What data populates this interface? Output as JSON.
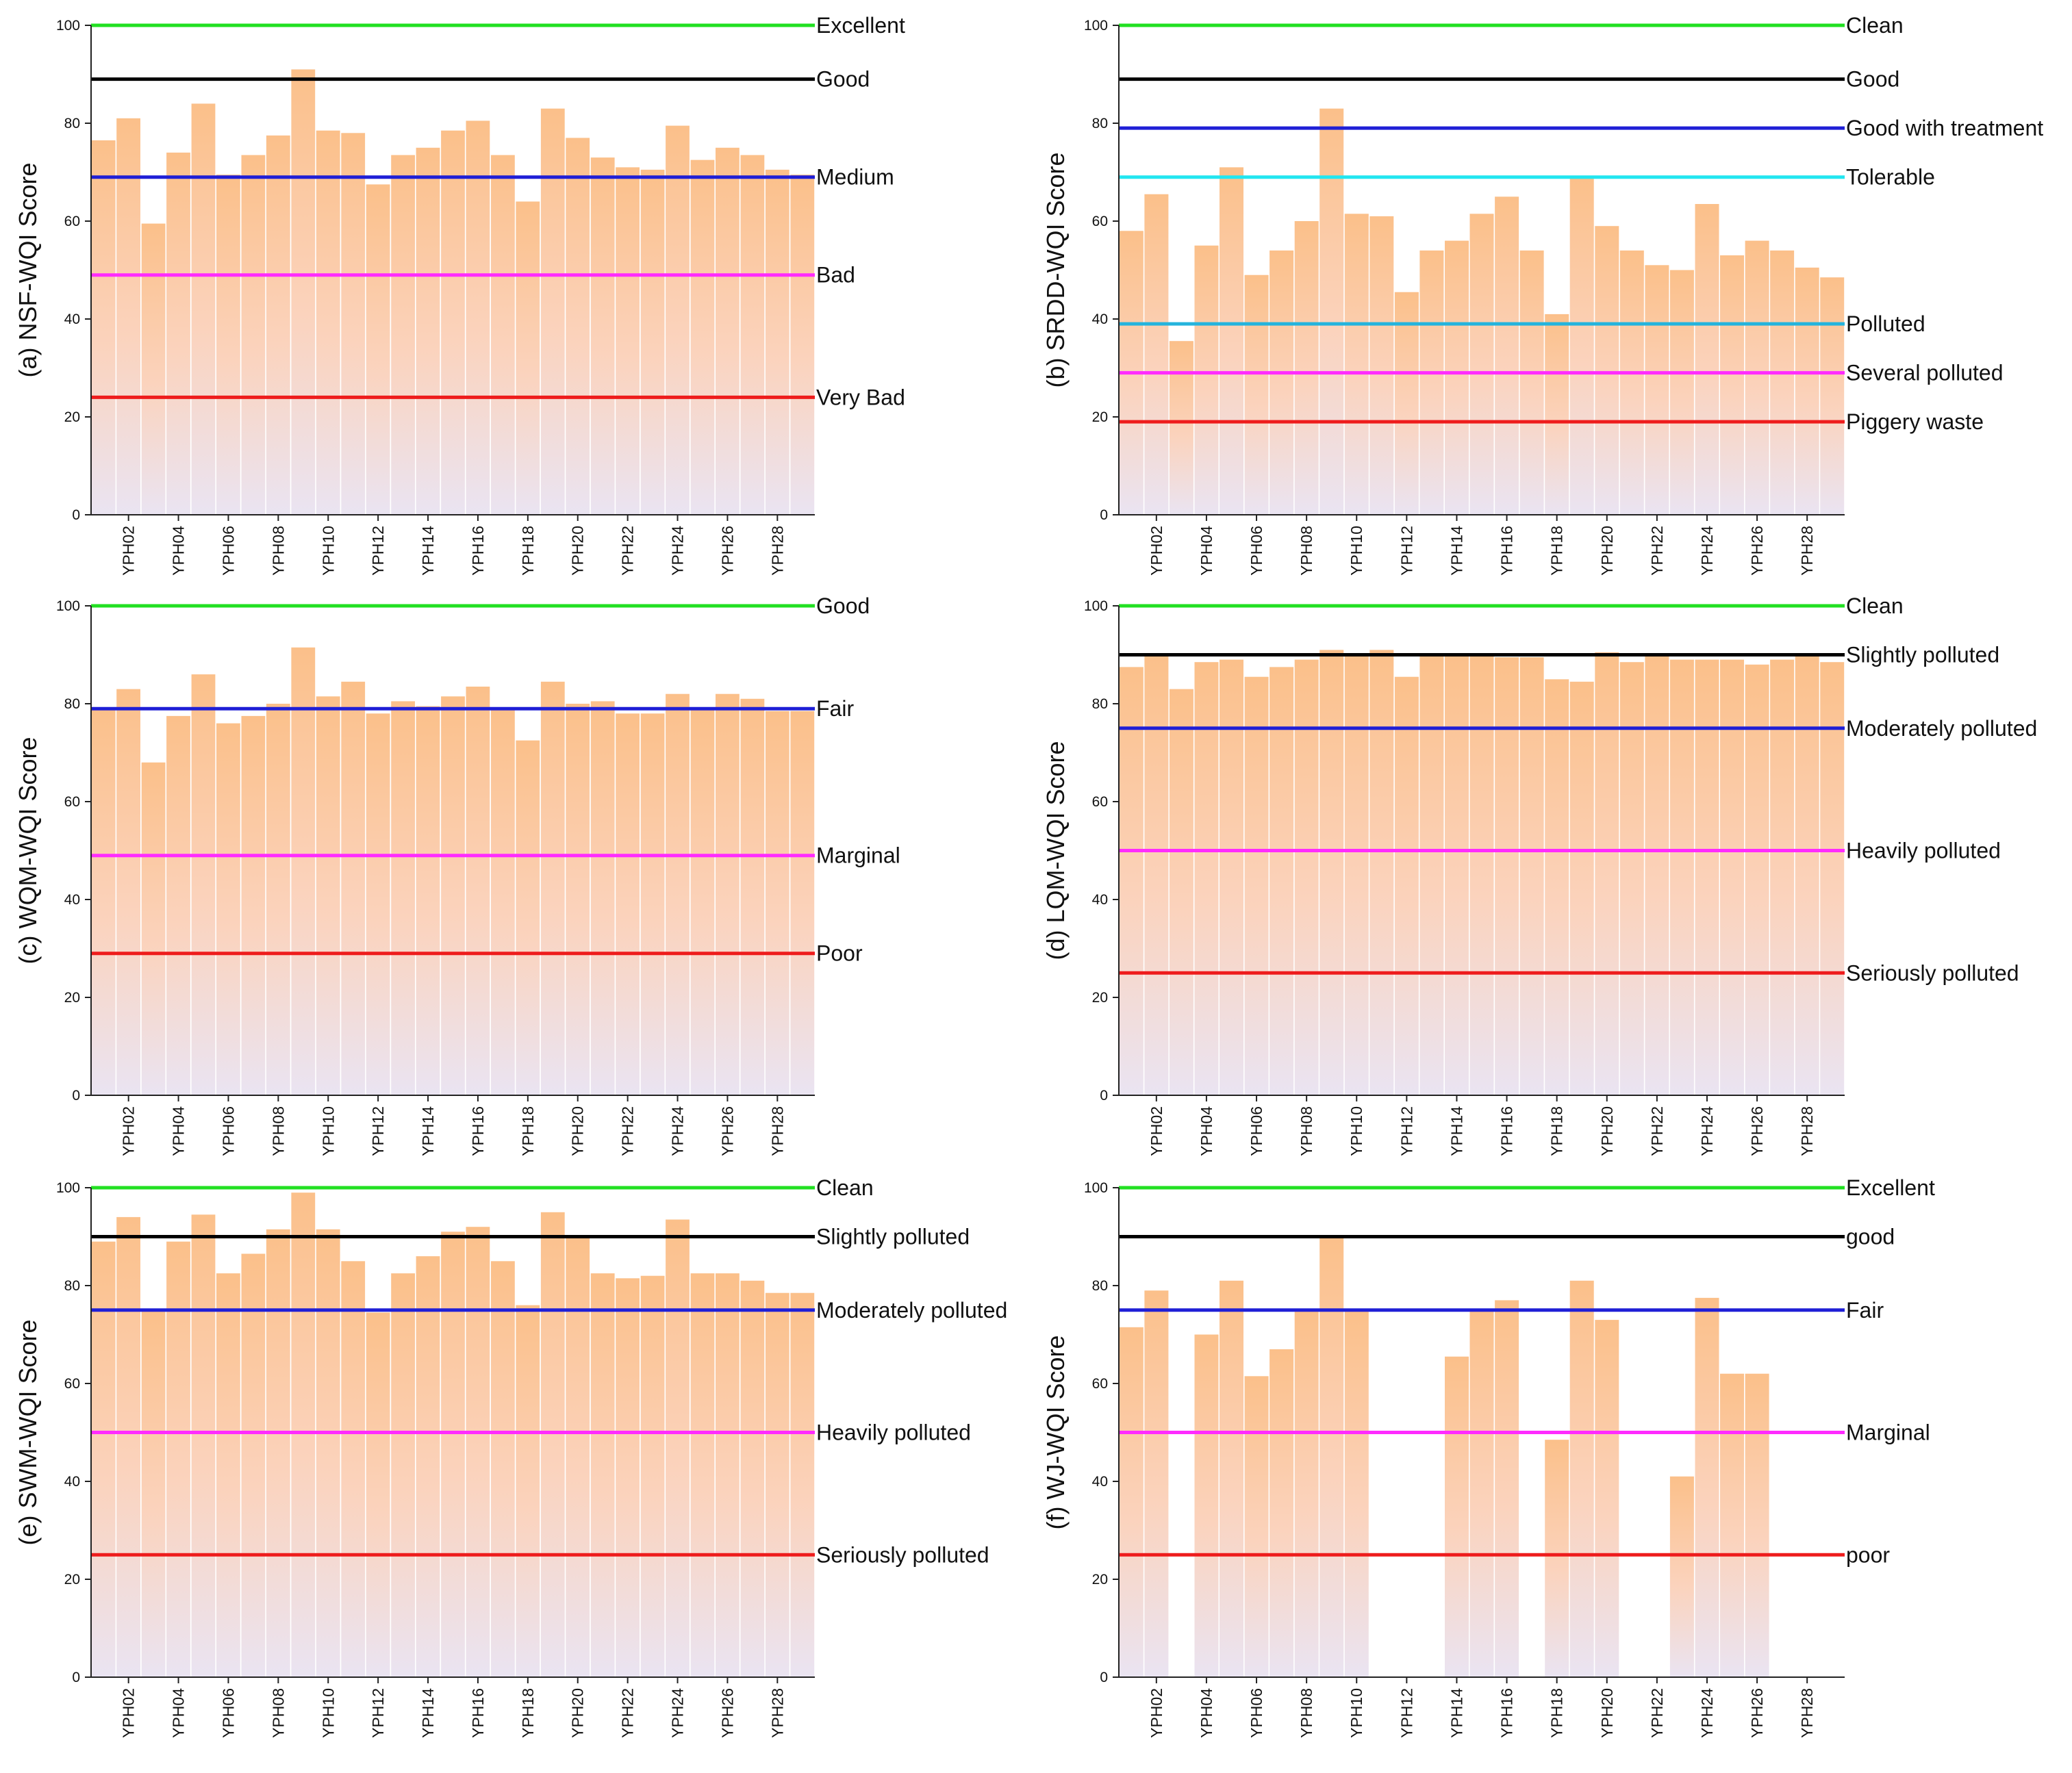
{
  "chart_data": [
    {
      "id": "a",
      "type": "bar",
      "ylabel": "(a) NSF-WQI Score",
      "ylim": [
        0,
        100
      ],
      "yticks": [
        "0",
        "20",
        "40",
        "60",
        "80",
        "100"
      ],
      "categories": [
        "YPH01",
        "YPH02",
        "YPH03",
        "YPH04",
        "YPH05",
        "YPH06",
        "YPH07",
        "YPH08",
        "YPH09",
        "YPH10",
        "YPH11",
        "YPH12",
        "YPH13",
        "YPH14",
        "YPH15",
        "YPH16",
        "YPH17",
        "YPH18",
        "YPH19",
        "YPH20",
        "YPH21",
        "YPH22",
        "YPH23",
        "YPH24",
        "YPH25",
        "YPH26",
        "YPH27",
        "YPH28",
        "YPH29"
      ],
      "xtick_labels": [
        "YPH02",
        "YPH04",
        "YPH06",
        "YPH08",
        "YPH10",
        "YPH12",
        "YPH14",
        "YPH16",
        "YPH18",
        "YPH20",
        "YPH22",
        "YPH24",
        "YPH26",
        "YPH28"
      ],
      "values": [
        76.5,
        81,
        59.5,
        74,
        84,
        69.5,
        73.5,
        77.5,
        91,
        78.5,
        78,
        67.5,
        73.5,
        75,
        78.5,
        80.5,
        73.5,
        64,
        83,
        77,
        73,
        71,
        70.5,
        79.5,
        72.5,
        75,
        73.5,
        70.5,
        69.5
      ],
      "thresholds": [
        {
          "value": 100,
          "label": "Excellent",
          "color": "#22e022"
        },
        {
          "value": 89,
          "label": "Good",
          "color": "#000000"
        },
        {
          "value": 69,
          "label": "Medium",
          "color": "#1f1fd6"
        },
        {
          "value": 49,
          "label": "Bad",
          "color": "#ff2bff"
        },
        {
          "value": 24,
          "label": "Very Bad",
          "color": "#ee1c1c"
        }
      ]
    },
    {
      "id": "b",
      "type": "bar",
      "ylabel": "(b) SRDD-WQI Score",
      "ylim": [
        0,
        100
      ],
      "yticks": [
        "0",
        "20",
        "40",
        "60",
        "80",
        "100"
      ],
      "categories": [
        "YPH01",
        "YPH02",
        "YPH03",
        "YPH04",
        "YPH05",
        "YPH06",
        "YPH07",
        "YPH08",
        "YPH09",
        "YPH10",
        "YPH11",
        "YPH12",
        "YPH13",
        "YPH14",
        "YPH15",
        "YPH16",
        "YPH17",
        "YPH18",
        "YPH19",
        "YPH20",
        "YPH21",
        "YPH22",
        "YPH23",
        "YPH24",
        "YPH25",
        "YPH26",
        "YPH27",
        "YPH28",
        "YPH29"
      ],
      "xtick_labels": [
        "YPH02",
        "YPH04",
        "YPH06",
        "YPH08",
        "YPH10",
        "YPH12",
        "YPH14",
        "YPH16",
        "YPH18",
        "YPH20",
        "YPH22",
        "YPH24",
        "YPH26",
        "YPH28"
      ],
      "values": [
        58,
        65.5,
        35.5,
        55,
        71,
        49,
        54,
        60,
        83,
        61.5,
        61,
        45.5,
        54,
        56,
        61.5,
        65,
        54,
        41,
        69,
        59,
        54,
        51,
        50,
        63.5,
        53,
        56,
        54,
        50.5,
        48.5
      ],
      "thresholds": [
        {
          "value": 100,
          "label": "Clean",
          "color": "#22e022"
        },
        {
          "value": 89,
          "label": "Good",
          "color": "#000000"
        },
        {
          "value": 79,
          "label": "Good with treatment",
          "color": "#1f1fd6"
        },
        {
          "value": 69,
          "label": "Tolerable",
          "color": "#22e6f0"
        },
        {
          "value": 39,
          "label": "Polluted",
          "color": "#25b4dd"
        },
        {
          "value": 29,
          "label": "Several polluted",
          "color": "#ff2bff"
        },
        {
          "value": 19,
          "label": "Piggery waste",
          "color": "#ee1c1c"
        }
      ]
    },
    {
      "id": "c",
      "type": "bar",
      "ylabel": "(c) WQM-WQI Score",
      "ylim": [
        0,
        100
      ],
      "yticks": [
        "0",
        "20",
        "40",
        "60",
        "80",
        "100"
      ],
      "categories": [
        "YPH01",
        "YPH02",
        "YPH03",
        "YPH04",
        "YPH05",
        "YPH06",
        "YPH07",
        "YPH08",
        "YPH09",
        "YPH10",
        "YPH11",
        "YPH12",
        "YPH13",
        "YPH14",
        "YPH15",
        "YPH16",
        "YPH17",
        "YPH18",
        "YPH19",
        "YPH20",
        "YPH21",
        "YPH22",
        "YPH23",
        "YPH24",
        "YPH25",
        "YPH26",
        "YPH27",
        "YPH28",
        "YPH29"
      ],
      "xtick_labels": [
        "YPH02",
        "YPH04",
        "YPH06",
        "YPH08",
        "YPH10",
        "YPH12",
        "YPH14",
        "YPH16",
        "YPH18",
        "YPH20",
        "YPH22",
        "YPH24",
        "YPH26",
        "YPH28"
      ],
      "values": [
        79,
        83,
        68,
        77.5,
        86,
        76,
        77.5,
        80,
        91.5,
        81.5,
        84.5,
        78,
        80.5,
        79.5,
        81.5,
        83.5,
        79,
        72.5,
        84.5,
        80,
        80.5,
        78,
        78,
        82,
        79,
        82,
        81,
        78.5,
        78.5
      ],
      "thresholds": [
        {
          "value": 100,
          "label": "Good",
          "color": "#22e022"
        },
        {
          "value": 79,
          "label": "Fair",
          "color": "#1f1fd6"
        },
        {
          "value": 49,
          "label": "Marginal",
          "color": "#ff2bff"
        },
        {
          "value": 29,
          "label": "Poor",
          "color": "#ee1c1c"
        }
      ]
    },
    {
      "id": "d",
      "type": "bar",
      "ylabel": "(d) LQM-WQI Score",
      "ylim": [
        0,
        100
      ],
      "yticks": [
        "0",
        "20",
        "40",
        "60",
        "80",
        "100"
      ],
      "categories": [
        "YPH01",
        "YPH02",
        "YPH03",
        "YPH04",
        "YPH05",
        "YPH06",
        "YPH07",
        "YPH08",
        "YPH09",
        "YPH10",
        "YPH11",
        "YPH12",
        "YPH13",
        "YPH14",
        "YPH15",
        "YPH16",
        "YPH17",
        "YPH18",
        "YPH19",
        "YPH20",
        "YPH21",
        "YPH22",
        "YPH23",
        "YPH24",
        "YPH25",
        "YPH26",
        "YPH27",
        "YPH28",
        "YPH29"
      ],
      "xtick_labels": [
        "YPH02",
        "YPH04",
        "YPH06",
        "YPH08",
        "YPH10",
        "YPH12",
        "YPH14",
        "YPH16",
        "YPH18",
        "YPH20",
        "YPH22",
        "YPH24",
        "YPH26",
        "YPH28"
      ],
      "values": [
        87.5,
        90,
        83,
        88.5,
        89,
        85.5,
        87.5,
        89,
        91,
        90,
        91,
        85.5,
        90,
        90,
        90,
        89.5,
        89.5,
        85,
        84.5,
        90.5,
        88.5,
        90,
        89,
        89,
        89,
        88,
        89,
        90,
        88.5
      ],
      "thresholds": [
        {
          "value": 100,
          "label": "Clean",
          "color": "#22e022"
        },
        {
          "value": 90,
          "label": "Slightly polluted",
          "color": "#000000"
        },
        {
          "value": 75,
          "label": "Moderately polluted",
          "color": "#1f1fd6"
        },
        {
          "value": 50,
          "label": "Heavily polluted",
          "color": "#ff2bff"
        },
        {
          "value": 25,
          "label": "Seriously polluted",
          "color": "#ee1c1c"
        }
      ]
    },
    {
      "id": "e",
      "type": "bar",
      "ylabel": "(e) SWM-WQI Score",
      "ylim": [
        0,
        100
      ],
      "yticks": [
        "0",
        "20",
        "40",
        "60",
        "80",
        "100"
      ],
      "categories": [
        "YPH01",
        "YPH02",
        "YPH03",
        "YPH04",
        "YPH05",
        "YPH06",
        "YPH07",
        "YPH08",
        "YPH09",
        "YPH10",
        "YPH11",
        "YPH12",
        "YPH13",
        "YPH14",
        "YPH15",
        "YPH16",
        "YPH17",
        "YPH18",
        "YPH19",
        "YPH20",
        "YPH21",
        "YPH22",
        "YPH23",
        "YPH24",
        "YPH25",
        "YPH26",
        "YPH27",
        "YPH28",
        "YPH29"
      ],
      "xtick_labels": [
        "YPH02",
        "YPH04",
        "YPH06",
        "YPH08",
        "YPH10",
        "YPH12",
        "YPH14",
        "YPH16",
        "YPH18",
        "YPH20",
        "YPH22",
        "YPH24",
        "YPH26",
        "YPH28"
      ],
      "values": [
        89,
        94,
        75,
        89,
        94.5,
        82.5,
        86.5,
        91.5,
        99,
        91.5,
        85,
        74.5,
        82.5,
        86,
        91,
        92,
        85,
        76,
        95,
        90,
        82.5,
        81.5,
        82,
        93.5,
        82.5,
        82.5,
        81,
        78.5,
        78.5
      ],
      "thresholds": [
        {
          "value": 100,
          "label": "Clean",
          "color": "#22e022"
        },
        {
          "value": 90,
          "label": "Slightly polluted",
          "color": "#000000"
        },
        {
          "value": 75,
          "label": "Moderately polluted",
          "color": "#1f1fd6"
        },
        {
          "value": 50,
          "label": "Heavily polluted",
          "color": "#ff2bff"
        },
        {
          "value": 25,
          "label": "Seriously polluted",
          "color": "#ee1c1c"
        }
      ]
    },
    {
      "id": "f",
      "type": "bar",
      "ylabel": "(f) WJ-WQI Score",
      "ylim": [
        0,
        100
      ],
      "yticks": [
        "0",
        "20",
        "40",
        "60",
        "80",
        "100"
      ],
      "categories": [
        "YPH01",
        "YPH02",
        "YPH03",
        "YPH04",
        "YPH05",
        "YPH06",
        "YPH07",
        "YPH08",
        "YPH09",
        "YPH10",
        "YPH11",
        "YPH12",
        "YPH13",
        "YPH14",
        "YPH15",
        "YPH16",
        "YPH17",
        "YPH18",
        "YPH19",
        "YPH20",
        "YPH21",
        "YPH22",
        "YPH23",
        "YPH24",
        "YPH25",
        "YPH26",
        "YPH27",
        "YPH28",
        "YPH29"
      ],
      "xtick_labels": [
        "YPH02",
        "YPH04",
        "YPH06",
        "YPH08",
        "YPH10",
        "YPH12",
        "YPH14",
        "YPH16",
        "YPH18",
        "YPH20",
        "YPH22",
        "YPH24",
        "YPH26",
        "YPH28"
      ],
      "values": [
        71.5,
        79,
        null,
        70,
        81,
        61.5,
        67,
        75,
        90,
        75,
        null,
        null,
        null,
        65.5,
        75,
        77,
        null,
        48.5,
        81,
        73,
        null,
        null,
        41,
        77.5,
        62,
        62,
        null,
        null,
        null
      ],
      "thresholds": [
        {
          "value": 100,
          "label": "Excellent",
          "color": "#22e022"
        },
        {
          "value": 90,
          "label": "good",
          "color": "#000000"
        },
        {
          "value": 75,
          "label": "Fair",
          "color": "#1f1fd6"
        },
        {
          "value": 50,
          "label": "Marginal",
          "color": "#ff2bff"
        },
        {
          "value": 25,
          "label": "poor",
          "color": "#ee1c1c"
        }
      ]
    }
  ]
}
